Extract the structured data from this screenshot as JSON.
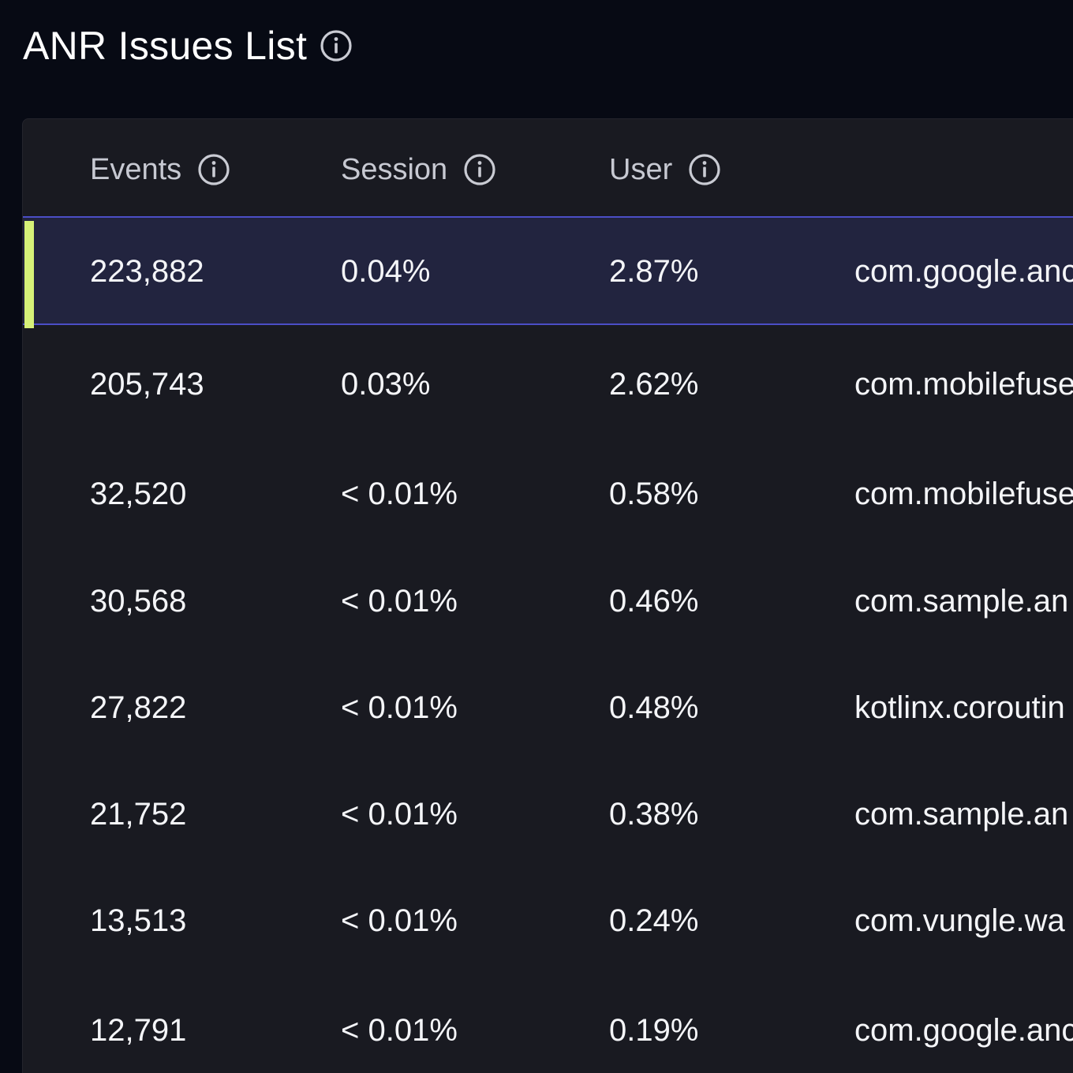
{
  "header": {
    "title": "ANR Issues List",
    "title_icon": "info-icon"
  },
  "table": {
    "columns": [
      {
        "label": "Events",
        "icon": "info-icon"
      },
      {
        "label": "Session",
        "icon": "info-icon"
      },
      {
        "label": "User",
        "icon": "info-icon"
      }
    ],
    "selected_row_index": 0,
    "rows": [
      {
        "events": "223,882",
        "session": "0.04%",
        "user": "2.87%",
        "issue": "com.google.anc"
      },
      {
        "events": "205,743",
        "session": "0.03%",
        "user": "2.62%",
        "issue": "com.mobilefuse"
      },
      {
        "events": "32,520",
        "session": "< 0.01%",
        "user": "0.58%",
        "issue": "com.mobilefuse"
      },
      {
        "events": "30,568",
        "session": "< 0.01%",
        "user": "0.46%",
        "issue": "com.sample.an"
      },
      {
        "events": "27,822",
        "session": "< 0.01%",
        "user": "0.48%",
        "issue": "kotlinx.coroutin"
      },
      {
        "events": "21,752",
        "session": "< 0.01%",
        "user": "0.38%",
        "issue": "com.sample.an"
      },
      {
        "events": "13,513",
        "session": "< 0.01%",
        "user": "0.24%",
        "issue": "com.vungle.wa"
      },
      {
        "events": "12,791",
        "session": "< 0.01%",
        "user": "0.19%",
        "issue": "com.google.anc"
      }
    ]
  },
  "colors": {
    "page_background": "#070a14",
    "card_background": "#191a21",
    "selected_row_background": "#22243f",
    "accent_bar": "#d6f178",
    "divider": "#4b4ec6"
  }
}
